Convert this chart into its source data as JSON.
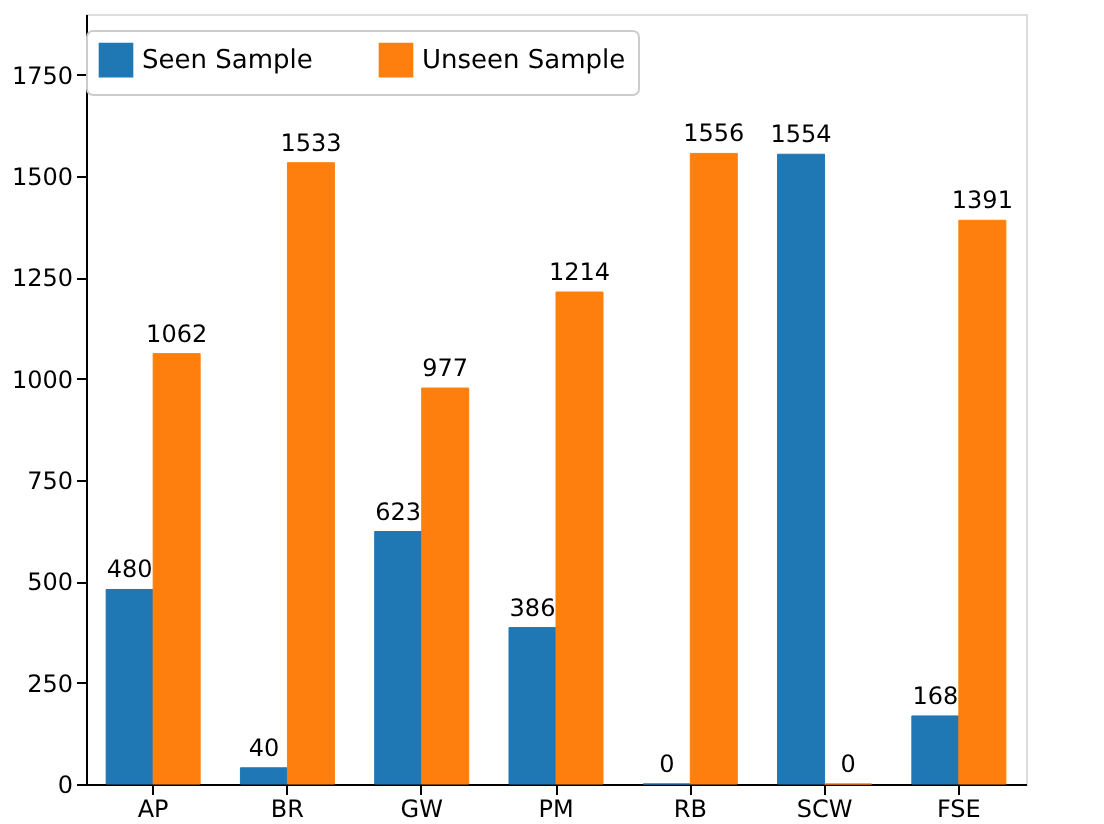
{
  "chart_data": {
    "type": "bar",
    "categories": [
      "AP",
      "BR",
      "GW",
      "PM",
      "RB",
      "SCW",
      "FSE"
    ],
    "series": [
      {
        "name": "Seen Sample",
        "color": "#1f77b4",
        "values": [
          480,
          40,
          623,
          386,
          0,
          1554,
          168
        ]
      },
      {
        "name": "Unseen Sample",
        "color": "#ff7f0e",
        "values": [
          1062,
          1533,
          977,
          1214,
          1556,
          0,
          1391
        ]
      }
    ],
    "ylim": [
      0,
      1900
    ],
    "yticks": [
      0,
      250,
      500,
      750,
      1000,
      1250,
      1500,
      1750
    ],
    "data_labels": true,
    "legend": "top",
    "grid": false
  }
}
